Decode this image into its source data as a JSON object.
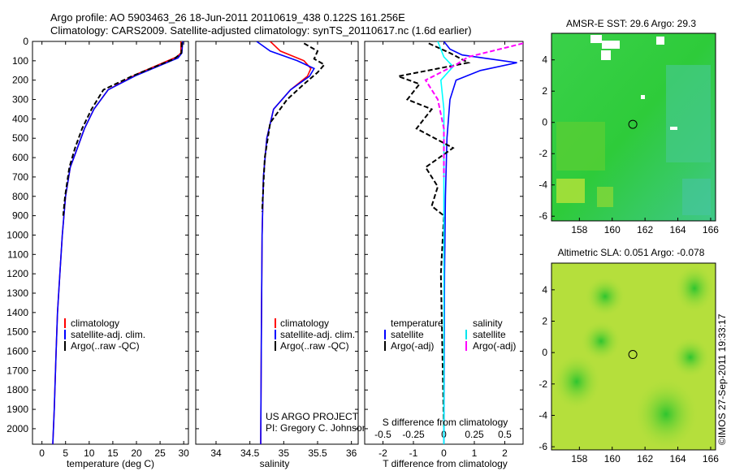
{
  "header": {
    "line1": "Argo profile: AO 5903463_26 18-Jun-2011 20110619_438 0.122S 161.256E",
    "line2": "Climatology: CARS2009. Satellite-adjusted climatology: synTS_20110617.nc (1.6d earlier)"
  },
  "credit": {
    "project": "US ARGO PROJECT",
    "pi": "PI: Gregory C. Johnson",
    "stamp": "©IMOS 27-Sep-2011 19:33:17"
  },
  "colors": {
    "climatology": "#ff0000",
    "satellite": "#0000ff",
    "argo": "#000000",
    "sal_satellite": "#00e5ee",
    "sal_argo": "#ff00ff",
    "sst_map": "#33cc33",
    "sla_map": "#aadd33"
  },
  "chart_data": [
    {
      "type": "line",
      "panel": "temperature",
      "xlabel": "temperature (deg C)",
      "ylabel": "",
      "xlim": [
        -2,
        31
      ],
      "ylim": [
        2080,
        0
      ],
      "xticks": [
        "0",
        "5",
        "10",
        "15",
        "20",
        "25",
        "30"
      ],
      "yticks": [
        "0",
        "100",
        "200",
        "300",
        "400",
        "500",
        "600",
        "700",
        "800",
        "900",
        "1000",
        "1100",
        "1200",
        "1300",
        "1400",
        "1500",
        "1600",
        "1700",
        "1800",
        "1900",
        "2000"
      ],
      "legend": [
        "climatology",
        "satellite-adj. clim.",
        "Argo(..raw -QC)"
      ],
      "series": [
        {
          "name": "climatology",
          "color": "red",
          "x": [
            29.4,
            29.4,
            28.5,
            20,
            14,
            11,
            9,
            7.5,
            6,
            5,
            4.3,
            3.8,
            3.3,
            3,
            2.6,
            2.3
          ],
          "y": [
            0,
            60,
            80,
            170,
            250,
            350,
            450,
            550,
            650,
            800,
            1000,
            1200,
            1400,
            1600,
            1900,
            2080
          ]
        },
        {
          "name": "satellite-adj. clim.",
          "color": "blue",
          "x": [
            29.8,
            29.6,
            28.8,
            20,
            14,
            11,
            9,
            7.5,
            6,
            5,
            4.3,
            3.8,
            3.3,
            3,
            2.6,
            2.3
          ],
          "y": [
            0,
            60,
            85,
            175,
            250,
            350,
            450,
            550,
            650,
            800,
            1000,
            1200,
            1400,
            1600,
            1900,
            2080
          ]
        },
        {
          "name": "Argo(..raw -QC)",
          "color": "black",
          "dashed": true,
          "x": [
            29.6,
            29.5,
            28,
            19,
            13,
            10.5,
            8.5,
            7,
            5.8,
            4.9,
            4.5
          ],
          "y": [
            5,
            60,
            90,
            180,
            250,
            350,
            450,
            550,
            650,
            800,
            900
          ]
        }
      ]
    },
    {
      "type": "line",
      "panel": "salinity",
      "xlabel": "salinity",
      "xlim": [
        33.7,
        36.1
      ],
      "ylim": [
        2080,
        0
      ],
      "xticks": [
        "34",
        "34.5",
        "35",
        "35.5",
        "36"
      ],
      "legend": [
        "climatology",
        "satellite-adj. clim.",
        "Argo(..raw -QC)"
      ],
      "series": [
        {
          "name": "climatology",
          "color": "red",
          "x": [
            34.8,
            34.95,
            35.3,
            35.4,
            35.35,
            35.1,
            34.85,
            34.75,
            34.7,
            34.68,
            34.67,
            34.66
          ],
          "y": [
            0,
            50,
            100,
            140,
            180,
            250,
            350,
            500,
            700,
            1000,
            1500,
            2080
          ]
        },
        {
          "name": "satellite-adj. clim.",
          "color": "blue",
          "x": [
            34.6,
            34.8,
            35.2,
            35.45,
            35.38,
            35.1,
            34.85,
            34.75,
            34.7,
            34.68,
            34.67,
            34.66
          ],
          "y": [
            0,
            50,
            100,
            140,
            180,
            250,
            350,
            500,
            700,
            1000,
            1500,
            2080
          ]
        },
        {
          "name": "Argo(..raw -QC)",
          "color": "black",
          "dashed": true,
          "x": [
            35.3,
            35.5,
            35.45,
            35.6,
            35.5,
            35.3,
            35.05,
            34.8,
            34.72,
            34.68
          ],
          "y": [
            10,
            50,
            90,
            120,
            160,
            220,
            300,
            420,
            600,
            880
          ]
        }
      ]
    },
    {
      "type": "line",
      "panel": "difference",
      "xlabel": "T difference from climatology",
      "xlabel2": "S difference from climatology",
      "xlim": [
        -2.6,
        2.6
      ],
      "ylim": [
        2080,
        0
      ],
      "xticks": [
        "-2",
        "-1",
        "0",
        "1",
        "2"
      ],
      "xticks2": [
        "-0.5",
        "-0.25",
        "0",
        "0.25",
        "0.5"
      ],
      "legend_headers": [
        "temperature",
        "salinity"
      ],
      "legend": [
        "satellite",
        "Argo(-adj)",
        "satellite",
        "Argo(-adj)"
      ],
      "series": [
        {
          "name": "T satellite",
          "color": "blue",
          "x": [
            0,
            0.2,
            0.6,
            2.4,
            1.2,
            0.4,
            0.2,
            0.1,
            0.05,
            0.02,
            0
          ],
          "y": [
            0,
            40,
            70,
            110,
            150,
            200,
            300,
            500,
            800,
            1200,
            2080
          ]
        },
        {
          "name": "T Argo(-adj)",
          "color": "black",
          "dashed": true,
          "x": [
            -0.5,
            0.2,
            0.8,
            -1.5,
            -0.8,
            -1.2,
            -0.4,
            -0.9,
            0.3,
            -0.6,
            -0.2,
            -0.4,
            0,
            -0.1,
            0
          ],
          "y": [
            10,
            60,
            110,
            180,
            220,
            300,
            350,
            450,
            550,
            650,
            750,
            850,
            900,
            1200,
            2000
          ]
        },
        {
          "name": "S satellite",
          "color": "cyan",
          "x": [
            -0.2,
            0,
            0.3,
            -0.1,
            0,
            0,
            0,
            0
          ],
          "y": [
            0,
            80,
            130,
            200,
            350,
            800,
            1400,
            2080
          ]
        },
        {
          "name": "S Argo(-adj)",
          "color": "magenta",
          "dashed": true,
          "x": [
            2.6,
            0.8,
            0.4,
            -0.6,
            -0.2,
            0,
            0
          ],
          "y": [
            10,
            80,
            120,
            200,
            300,
            450,
            700
          ]
        }
      ]
    },
    {
      "type": "heatmap",
      "panel": "sst",
      "title": "AMSR-E SST: 29.6 Argo: 29.3",
      "xlim": [
        156.3,
        166.3
      ],
      "ylim": [
        -6.3,
        5.7
      ],
      "xticks": [
        "158",
        "160",
        "162",
        "164",
        "166"
      ],
      "yticks": [
        "4",
        "2",
        "0",
        "-2",
        "-4",
        "-6"
      ],
      "marker": {
        "x": 161.256,
        "y": -0.122
      }
    },
    {
      "type": "heatmap",
      "panel": "sla",
      "title": "Altimetric SLA: 0.051 Argo: -0.078",
      "xlim": [
        156.3,
        166.3
      ],
      "ylim": [
        -6.2,
        5.7
      ],
      "xticks": [
        "158",
        "160",
        "162",
        "164",
        "166"
      ],
      "yticks": [
        "4",
        "2",
        "0",
        "-2",
        "-4",
        "-6"
      ],
      "marker": {
        "x": 161.256,
        "y": -0.122
      }
    }
  ]
}
